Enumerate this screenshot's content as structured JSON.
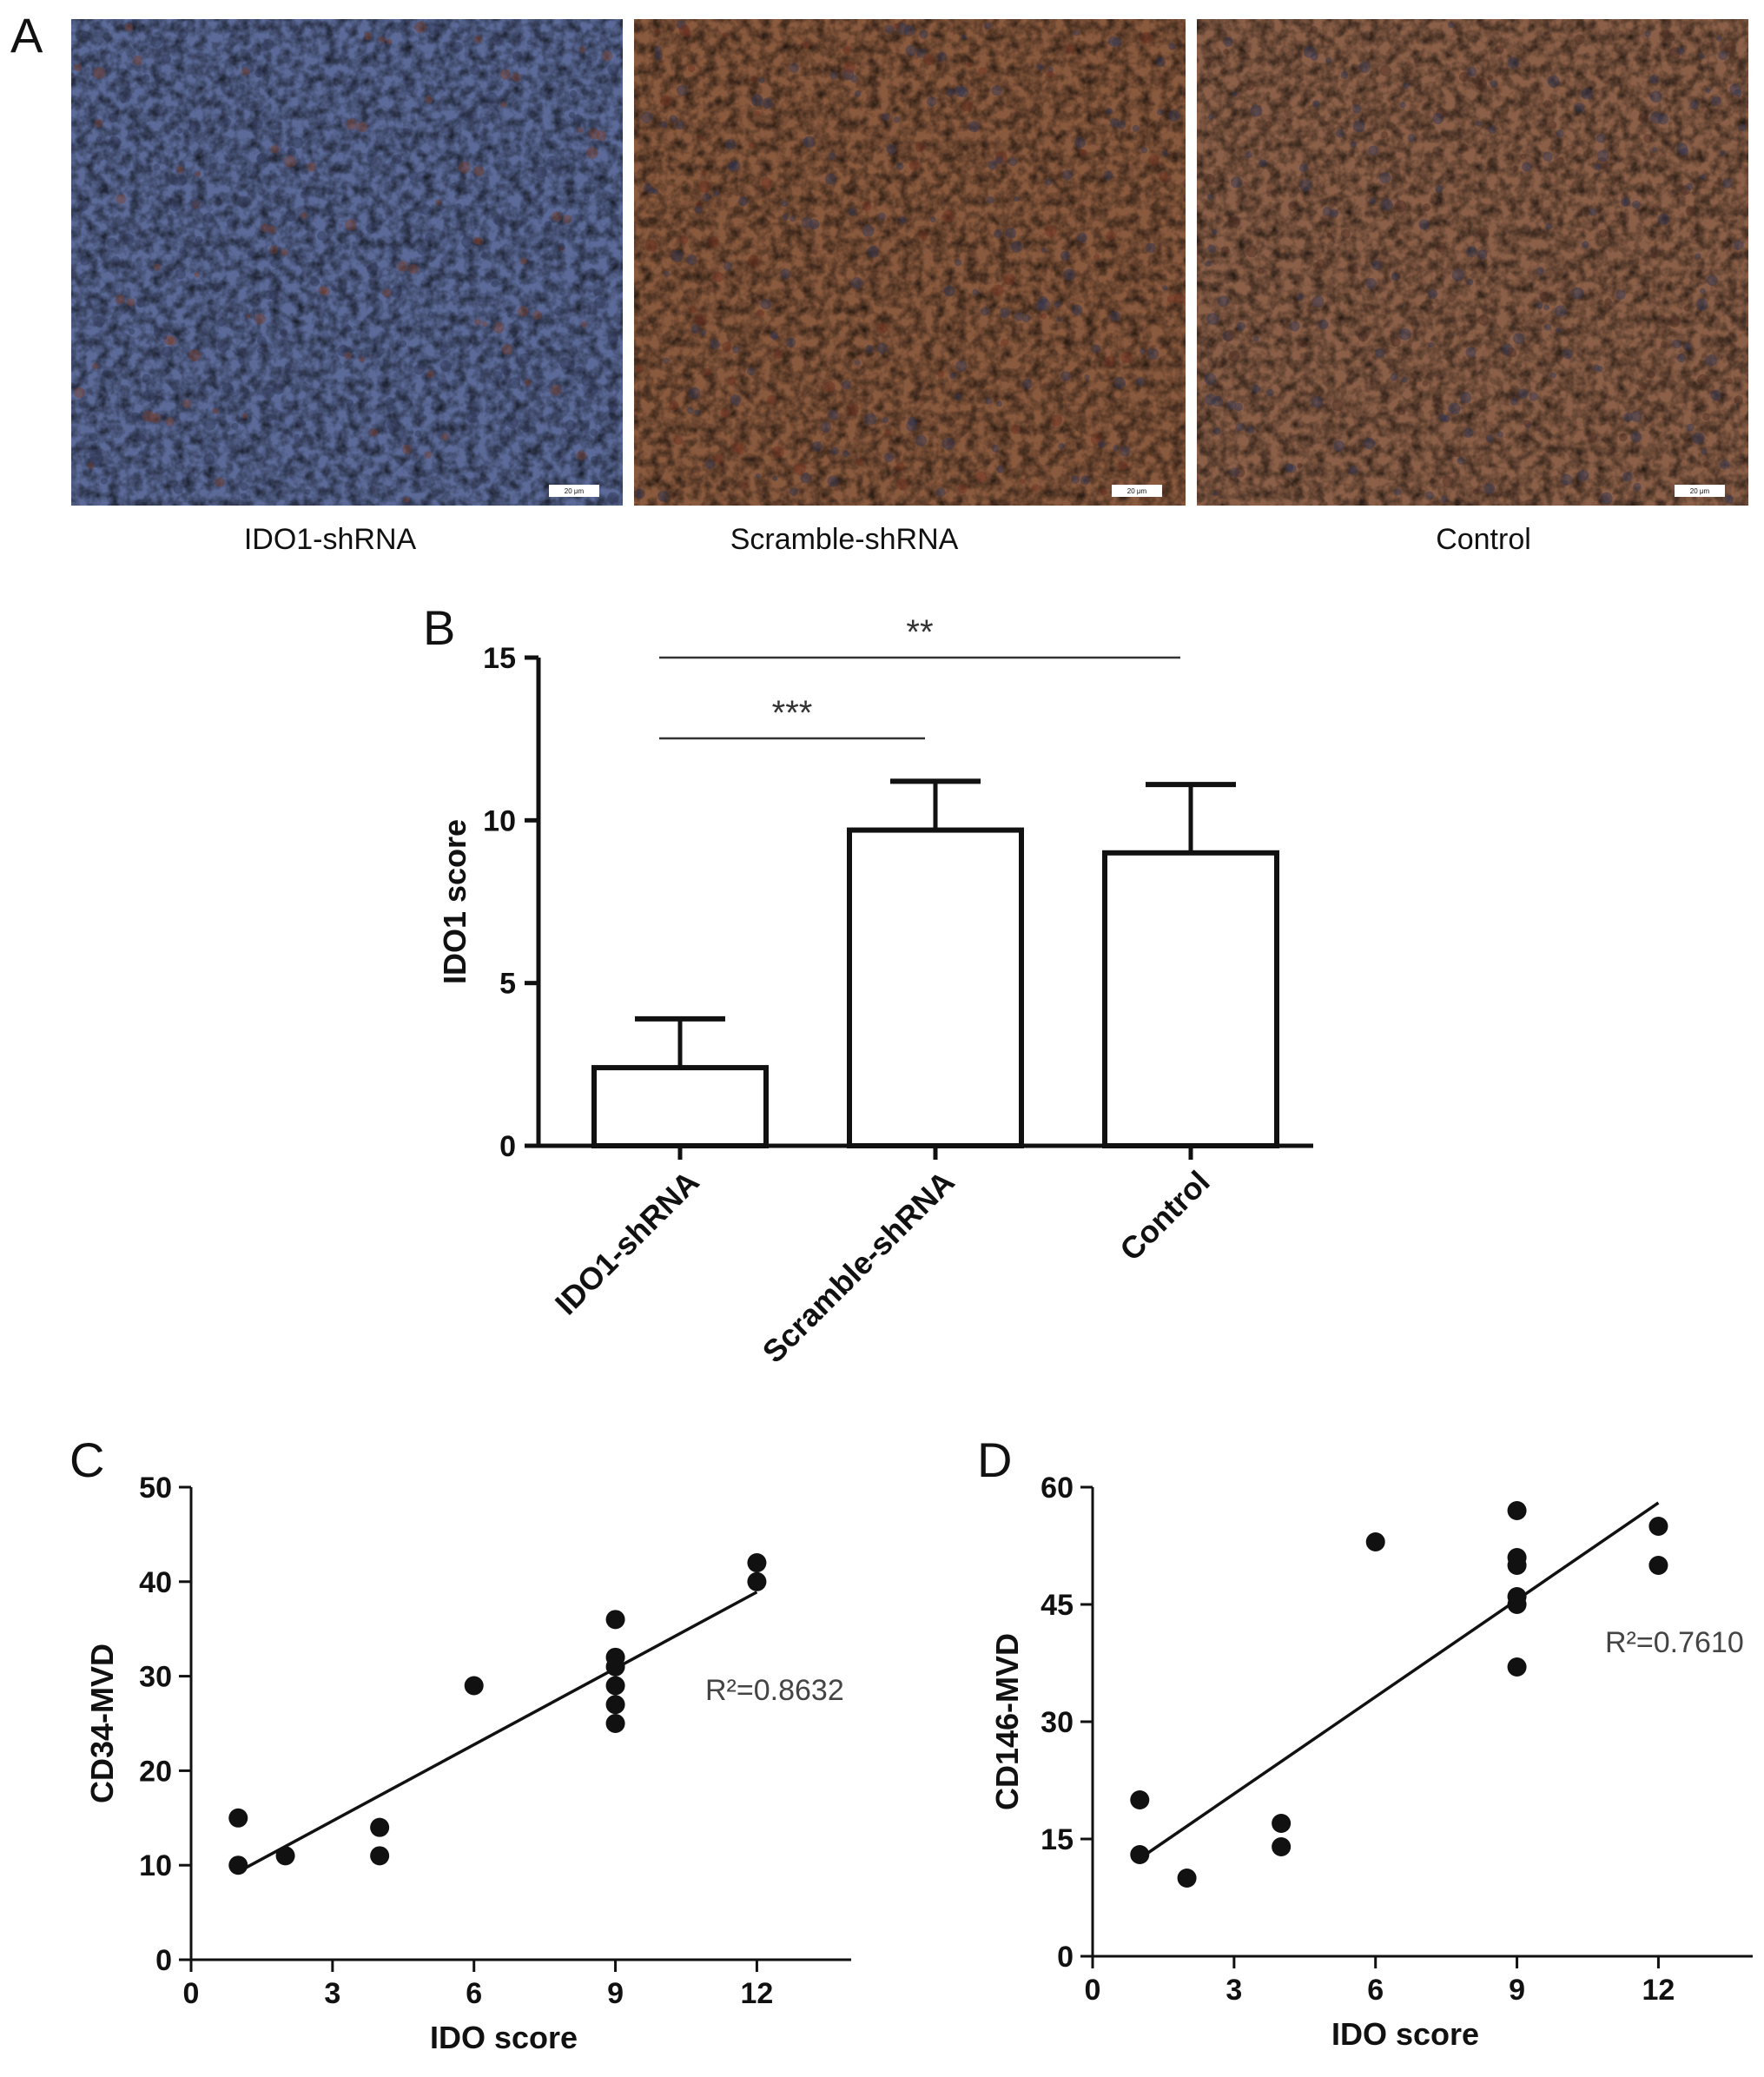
{
  "panels": {
    "a": {
      "letter": "A",
      "images": [
        {
          "caption": "IDO1-shRNA",
          "scale": "20 μm",
          "tone": "#5b6a98",
          "stain": "#7a3f2a"
        },
        {
          "caption": "Scramble-shRNA",
          "scale": "20 μm",
          "tone": "#8a5a3e",
          "stain": "#6e2e1e"
        },
        {
          "caption": "Control",
          "scale": "20 μm",
          "tone": "#8c6048",
          "stain": "#4a2a22"
        }
      ]
    },
    "b": {
      "letter": "B"
    },
    "c": {
      "letter": "C"
    },
    "d": {
      "letter": "D"
    }
  },
  "chart_data": [
    {
      "id": "B",
      "type": "bar",
      "categories": [
        "IDO1-shRNA",
        "Scramble-shRNA",
        "Control"
      ],
      "values": [
        2.4,
        9.7,
        9.0
      ],
      "errors": [
        1.5,
        1.5,
        2.1
      ],
      "ylabel": "IDO1 score",
      "ylim": [
        0,
        15
      ],
      "yticks": [
        0,
        5,
        10,
        15
      ],
      "significance": [
        {
          "from": 0,
          "to": 1,
          "label": "***"
        },
        {
          "from": 0,
          "to": 2,
          "label": "**"
        }
      ]
    },
    {
      "id": "C",
      "type": "scatter",
      "xlabel": "IDO score",
      "ylabel": "CD34-MVD",
      "xlim": [
        0,
        14
      ],
      "ylim": [
        0,
        50
      ],
      "xticks": [
        0,
        3,
        6,
        9,
        12
      ],
      "yticks": [
        0,
        10,
        20,
        30,
        40,
        50
      ],
      "points": [
        [
          1,
          15
        ],
        [
          1,
          10
        ],
        [
          2,
          11
        ],
        [
          4,
          14
        ],
        [
          4,
          11
        ],
        [
          6,
          29
        ],
        [
          9,
          36
        ],
        [
          9,
          32
        ],
        [
          9,
          31
        ],
        [
          9,
          29
        ],
        [
          9,
          27
        ],
        [
          9,
          25
        ],
        [
          12,
          42
        ],
        [
          12,
          40
        ]
      ],
      "fit": {
        "x": [
          1,
          12
        ],
        "y": [
          9.3,
          38.9
        ]
      },
      "annotation": "R²=0.8632"
    },
    {
      "id": "D",
      "type": "scatter",
      "xlabel": "IDO score",
      "ylabel": "CD146-MVD",
      "xlim": [
        0,
        14
      ],
      "ylim": [
        0,
        60
      ],
      "xticks": [
        0,
        3,
        6,
        9,
        12
      ],
      "yticks": [
        0,
        15,
        30,
        45,
        60
      ],
      "points": [
        [
          1,
          20
        ],
        [
          1,
          13
        ],
        [
          2,
          10
        ],
        [
          4,
          17
        ],
        [
          4,
          14
        ],
        [
          6,
          53
        ],
        [
          9,
          57
        ],
        [
          9,
          51
        ],
        [
          9,
          50
        ],
        [
          9,
          46
        ],
        [
          9,
          45
        ],
        [
          9,
          37
        ],
        [
          12,
          55
        ],
        [
          12,
          50
        ]
      ],
      "fit": {
        "x": [
          1,
          12
        ],
        "y": [
          12.5,
          58
        ]
      },
      "annotation": "R²=0.7610"
    }
  ]
}
